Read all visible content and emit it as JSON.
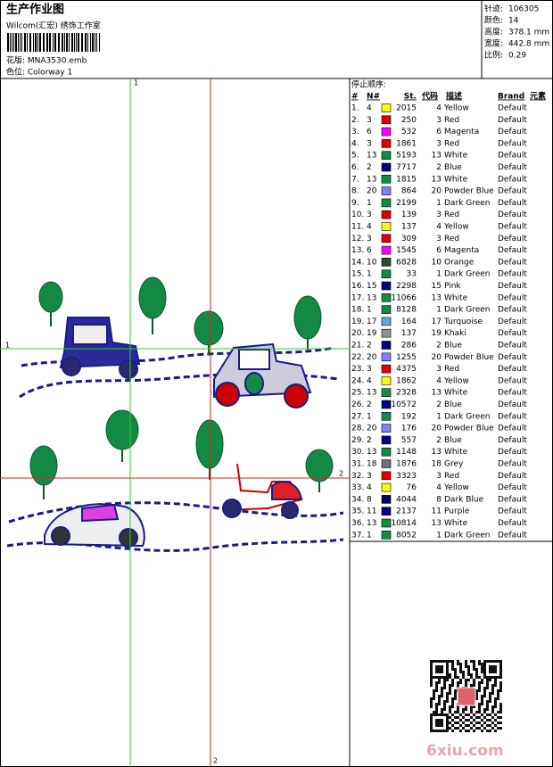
{
  "header": {
    "title": "生产作业图",
    "subtitle": "Wilcom(汇宏) 绣饰工作室",
    "design": "花版: MNA3530.emb",
    "colorway": "色位: Colorway 1"
  },
  "info": [
    {
      "label": "针迹:",
      "value": "106305"
    },
    {
      "label": "颜色:",
      "value": "14"
    },
    {
      "label": "高度:",
      "value": "378.1 mm"
    },
    {
      "label": "宽度:",
      "value": "442.8 mm"
    },
    {
      "label": "比例:",
      "value": "0.29"
    }
  ],
  "table": {
    "caption": "停止顺序:",
    "columns": [
      "#",
      "N#",
      "St.",
      "代码",
      "描述",
      "Brand",
      "元素"
    ],
    "rows": [
      [
        "1.",
        4,
        "#ffff00",
        2015,
        4,
        "Yellow",
        "Default"
      ],
      [
        "2.",
        3,
        "#e00000",
        250,
        3,
        "Red",
        "Default"
      ],
      [
        "3.",
        6,
        "#ff00ff",
        532,
        6,
        "Magenta",
        "Default"
      ],
      [
        "4.",
        3,
        "#e00000",
        1861,
        3,
        "Red",
        "Default"
      ],
      [
        "5.",
        13,
        "#138a45",
        5193,
        13,
        "White",
        "Default"
      ],
      [
        "6.",
        2,
        "#000080",
        7717,
        2,
        "Blue",
        "Default"
      ],
      [
        "7.",
        13,
        "#138a45",
        1815,
        13,
        "White",
        "Default"
      ],
      [
        "8.",
        20,
        "#8080ff",
        864,
        20,
        "Powder Blue",
        "Default"
      ],
      [
        "9.",
        1,
        "#138a45",
        2199,
        1,
        "Dark Green",
        "Default"
      ],
      [
        "10.",
        3,
        "#e00000",
        139,
        3,
        "Red",
        "Default"
      ],
      [
        "11.",
        4,
        "#ffff00",
        137,
        4,
        "Yellow",
        "Default"
      ],
      [
        "12.",
        3,
        "#e00000",
        309,
        3,
        "Red",
        "Default"
      ],
      [
        "13.",
        6,
        "#ff00ff",
        1545,
        6,
        "Magenta",
        "Default"
      ],
      [
        "14.",
        10,
        "#304830",
        6828,
        10,
        "Orange",
        "Default"
      ],
      [
        "15.",
        1,
        "#138a45",
        33,
        1,
        "Dark Green",
        "Default"
      ],
      [
        "16.",
        15,
        "#000080",
        2298,
        15,
        "Pink",
        "Default"
      ],
      [
        "17.",
        13,
        "#138a45",
        11066,
        13,
        "White",
        "Default"
      ],
      [
        "18.",
        1,
        "#138a45",
        8128,
        1,
        "Dark Green",
        "Default"
      ],
      [
        "19.",
        17,
        "#70a0d0",
        164,
        17,
        "Turquoise",
        "Default"
      ],
      [
        "20.",
        19,
        "#909090",
        137,
        19,
        "Khaki",
        "Default"
      ],
      [
        "21.",
        2,
        "#000080",
        286,
        2,
        "Blue",
        "Default"
      ],
      [
        "22.",
        20,
        "#8080ff",
        1255,
        20,
        "Powder Blue",
        "Default"
      ],
      [
        "23.",
        3,
        "#e00000",
        4375,
        3,
        "Red",
        "Default"
      ],
      [
        "24.",
        4,
        "#ffff00",
        1862,
        4,
        "Yellow",
        "Default"
      ],
      [
        "25.",
        13,
        "#138a45",
        2328,
        13,
        "White",
        "Default"
      ],
      [
        "26.",
        2,
        "#000080",
        10572,
        2,
        "Blue",
        "Default"
      ],
      [
        "27.",
        1,
        "#138a45",
        192,
        1,
        "Dark Green",
        "Default"
      ],
      [
        "28.",
        20,
        "#8080ff",
        176,
        20,
        "Powder Blue",
        "Default"
      ],
      [
        "29.",
        2,
        "#000080",
        557,
        2,
        "Blue",
        "Default"
      ],
      [
        "30.",
        13,
        "#138a45",
        1148,
        13,
        "White",
        "Default"
      ],
      [
        "31.",
        18,
        "#707070",
        1876,
        18,
        "Grey",
        "Default"
      ],
      [
        "32.",
        3,
        "#e00000",
        3323,
        3,
        "Red",
        "Default"
      ],
      [
        "33.",
        4,
        "#ffff00",
        76,
        4,
        "Yellow",
        "Default"
      ],
      [
        "34.",
        8,
        "#000060",
        4044,
        8,
        "Dark Blue",
        "Default"
      ],
      [
        "35.",
        11,
        "#000080",
        2137,
        11,
        "Purple",
        "Default"
      ],
      [
        "36.",
        13,
        "#138a45",
        10814,
        13,
        "White",
        "Default"
      ],
      [
        "37.",
        1,
        "#138a45",
        8052,
        1,
        "Dark Green",
        "Default"
      ]
    ]
  },
  "guides": [
    "1",
    "1",
    "2",
    "2"
  ],
  "watermark": "6xiu.com"
}
